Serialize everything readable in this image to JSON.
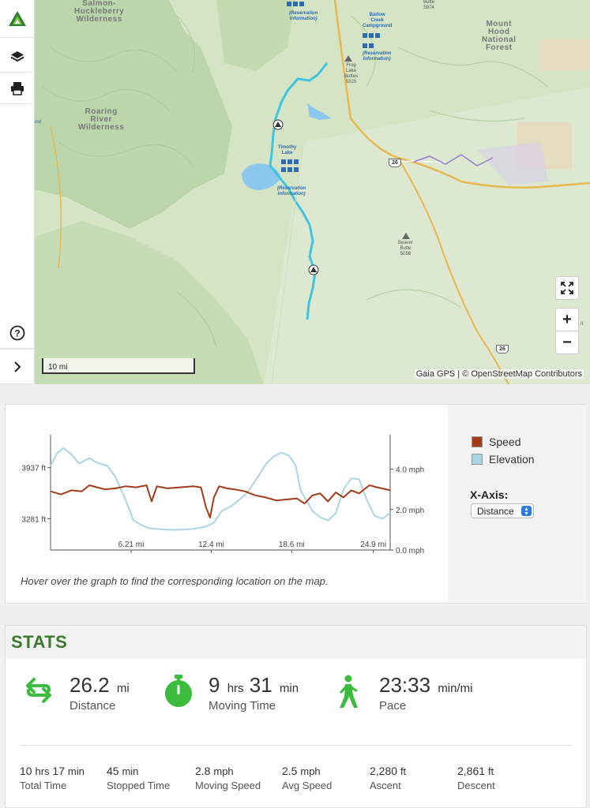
{
  "toolbar": {
    "items": [
      "gaia-logo",
      "layers",
      "print",
      "help",
      "expand"
    ]
  },
  "map": {
    "labels": {
      "salmon_huckleberry": "Salmon-\nHuckleberry\nWilderness",
      "roaring_river": "Roaring\nRiver\nWilderness",
      "mount_hood": "Mount\nHood\nNational\nForest",
      "barlow_creek": "Barlow\nCreek\nCampground",
      "barlow_reservation": "(Reservation\nInformation)",
      "timothy_lake": "Timothy\nLake",
      "timothy_reservation": "(Reservation\nInformation)",
      "top_reservation": "(Reservation\nInformation)",
      "frog_lake_buttes": "Frog\nLake\nButtes\n5325",
      "beaver_butte": "Beaver\nButte\n5056",
      "top_butte": "Butte\n5974",
      "edge_ind": "ind",
      "edge_ri": "ri",
      "route_26_a": "26",
      "route_26_b": "26"
    },
    "scale_label": "10 mi",
    "attribution": "Gaia GPS | © OpenStreetMap Contributors",
    "controls": {
      "fullscreen": "fullscreen",
      "zoom_in": "+",
      "zoom_out": "−"
    }
  },
  "chart": {
    "legend": [
      {
        "name": "Speed",
        "color": "#a23c18"
      },
      {
        "name": "Elevation",
        "color": "#a9d6e5"
      }
    ],
    "x_axis_title": "X-Axis:",
    "x_axis_selected": "Distance",
    "hover_hint": "Hover over the graph to find the corresponding location on the map."
  },
  "chart_data": {
    "type": "line",
    "x_ticks": [
      "6.21 mi",
      "12.4 mi",
      "18.6 mi",
      "24.9 mi"
    ],
    "x_tick_values": [
      6.21,
      12.4,
      18.6,
      24.9
    ],
    "x_range": [
      0,
      26.2
    ],
    "y_left_ticks": [
      "3937 ft",
      "3281 ft"
    ],
    "y_left_tick_values": [
      3937,
      3281
    ],
    "y_right_ticks": [
      "4.0 mph",
      "2.0 mph",
      "0.0 mph"
    ],
    "y_right_tick_values": [
      4.0,
      2.0,
      0.0
    ],
    "y_left_range": [
      2880,
      4360
    ],
    "y_right_range": [
      0,
      5.7
    ],
    "series": [
      {
        "name": "Elevation",
        "unit": "ft",
        "color": "#a9d6e5",
        "x": [
          0,
          0.5,
          1,
          1.6,
          2.2,
          3,
          3.6,
          4.4,
          5,
          5.8,
          6.4,
          7,
          7.6,
          8.2,
          9,
          10,
          11,
          12,
          12.6,
          13.2,
          14,
          14.6,
          15.2,
          16,
          16.6,
          17.2,
          17.8,
          18.4,
          18.9,
          19.3,
          19.8,
          20.2,
          20.8,
          21.4,
          22,
          22.6,
          23.2,
          23.8,
          24.4,
          25,
          25.6,
          26.2
        ],
        "y": [
          3960,
          4120,
          4190,
          4110,
          3990,
          4060,
          4000,
          3960,
          3820,
          3520,
          3260,
          3200,
          3160,
          3150,
          3140,
          3140,
          3150,
          3180,
          3230,
          3380,
          3450,
          3530,
          3620,
          3820,
          3980,
          4080,
          4130,
          4090,
          3970,
          3640,
          3500,
          3380,
          3300,
          3260,
          3350,
          3660,
          3800,
          3790,
          3520,
          3320,
          3280,
          3360
        ]
      },
      {
        "name": "Speed",
        "unit": "mph",
        "color": "#a23c18",
        "x": [
          0,
          0.8,
          1.6,
          2.4,
          3,
          3.6,
          4.2,
          5,
          5.8,
          6.6,
          7.4,
          7.8,
          8.2,
          9,
          10,
          11,
          11.6,
          12,
          12.3,
          12.6,
          13,
          13.6,
          14.2,
          15,
          15.8,
          16.6,
          17.4,
          18.2,
          19,
          19.6,
          20.2,
          20.8,
          21.4,
          22,
          22.6,
          23.2,
          23.8,
          24.6,
          25.2,
          26.2
        ],
        "y": [
          2.9,
          2.75,
          2.95,
          2.9,
          3.2,
          3.1,
          3.0,
          3.05,
          3.15,
          3.1,
          3.2,
          2.4,
          3.15,
          3.05,
          3.1,
          3.15,
          3.1,
          2.1,
          1.6,
          2.6,
          3.15,
          3.05,
          3.0,
          2.9,
          2.7,
          2.6,
          2.45,
          2.5,
          2.55,
          2.3,
          2.7,
          2.8,
          2.4,
          2.85,
          2.6,
          2.95,
          2.8,
          3.2,
          3.1,
          2.95
        ]
      }
    ]
  },
  "stats": {
    "title": "STATS",
    "big": [
      {
        "value": "26.2",
        "unit": "mi",
        "label": "Distance",
        "icon": "distance-arrows-icon"
      },
      {
        "value": "9",
        "unit": "hrs",
        "value2": "31",
        "unit2": "min",
        "label": "Moving Time",
        "icon": "stopwatch-icon"
      },
      {
        "value": "23:33",
        "unit": "min/mi",
        "label": "Pace",
        "icon": "hiker-icon"
      }
    ],
    "small": [
      {
        "value": "10",
        "unit": "hrs",
        "value2": "17",
        "unit2": "min",
        "label": "Total Time"
      },
      {
        "value": "45",
        "unit": "min",
        "label": "Stopped Time"
      },
      {
        "value": "2.8",
        "unit": "mph",
        "label": "Moving Speed"
      },
      {
        "value": "2.5",
        "unit": "mph",
        "label": "Avg Speed"
      },
      {
        "value": "2,280",
        "unit": "ft",
        "label": "Ascent"
      },
      {
        "value": "2,861",
        "unit": "ft",
        "label": "Descent"
      }
    ]
  },
  "colors": {
    "accent_green": "#3c7a2d",
    "bright_green": "#3cbc3c",
    "trail_cyan": "#40c4e0"
  }
}
